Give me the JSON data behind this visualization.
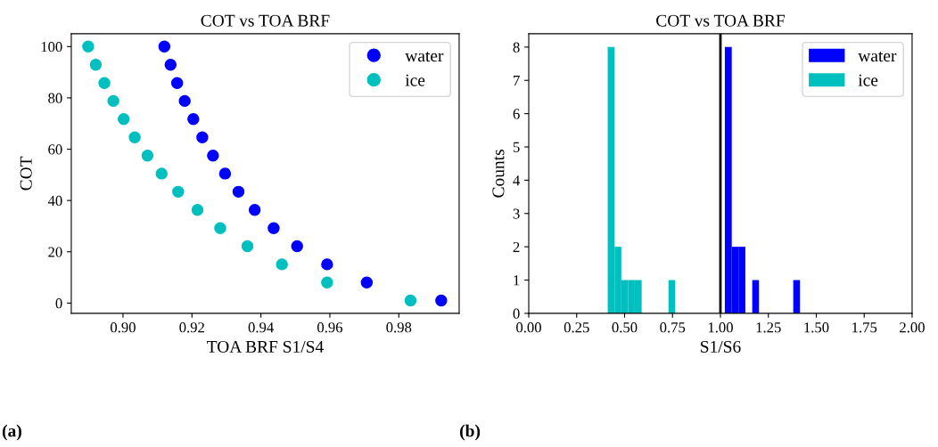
{
  "chart_data": [
    {
      "type": "scatter",
      "title": "COT vs TOA BRF",
      "xlabel": "TOA BRF S1/S4",
      "ylabel": "COT",
      "marker": "circle",
      "legend": "top right",
      "grid": false,
      "xlim": [
        0.885,
        0.9975
      ],
      "ylim": [
        -4.0,
        105.0
      ],
      "xticks": [
        {
          "value": 0.9,
          "label": "0.90"
        },
        {
          "value": 0.92,
          "label": "0.92"
        },
        {
          "value": 0.94,
          "label": "0.94"
        },
        {
          "value": 0.96,
          "label": "0.96"
        },
        {
          "value": 0.98,
          "label": "0.98"
        }
      ],
      "yticks": [
        0,
        20,
        40,
        60,
        80,
        100
      ],
      "series": [
        {
          "name": "water",
          "color": "#0000ff",
          "x": [
            0.912,
            0.9138,
            0.9157,
            0.9179,
            0.9204,
            0.923,
            0.9261,
            0.9296,
            0.9335,
            0.9382,
            0.9437,
            0.9505,
            0.9592,
            0.9707,
            0.9923
          ],
          "values": [
            100,
            92.9,
            85.8,
            78.8,
            71.7,
            64.6,
            57.5,
            50.5,
            43.4,
            36.3,
            29.2,
            22.2,
            15.1,
            8.0,
            1.0
          ]
        },
        {
          "name": "ice",
          "color": "#00bfbf",
          "x": [
            0.8899,
            0.8921,
            0.8946,
            0.8972,
            0.9002,
            0.9034,
            0.9071,
            0.9112,
            0.916,
            0.9216,
            0.9282,
            0.9361,
            0.9461,
            0.9592,
            0.9834
          ],
          "values": [
            100,
            92.9,
            85.8,
            78.8,
            71.7,
            64.6,
            57.5,
            50.5,
            43.4,
            36.3,
            29.2,
            22.2,
            15.1,
            8.0,
            1.0
          ]
        }
      ],
      "annotations": [
        "(a)"
      ]
    },
    {
      "type": "histogram",
      "title": "COT vs TOA BRF",
      "xlabel": "S1/S6",
      "ylabel": "Counts",
      "legend": "top right",
      "grid": false,
      "xlim": [
        0.0,
        2.0
      ],
      "ylim": [
        0,
        8.4
      ],
      "xticks": [
        {
          "value": 0,
          "label": "0.00"
        },
        {
          "value": 0.25,
          "label": "0.25"
        },
        {
          "value": 0.5,
          "label": "0.50"
        },
        {
          "value": 0.75,
          "label": "0.75"
        },
        {
          "value": 1.0,
          "label": "1.00"
        },
        {
          "value": 1.25,
          "label": "1.25"
        },
        {
          "value": 1.5,
          "label": "1.50"
        },
        {
          "value": 1.75,
          "label": "1.75"
        },
        {
          "value": 2.0,
          "label": "2.00"
        }
      ],
      "yticks": [
        0,
        1,
        2,
        3,
        4,
        5,
        6,
        7,
        8
      ],
      "bins": [
        0.412,
        0.448,
        0.483,
        0.518,
        0.553,
        0.589,
        0.729,
        0.764,
        1.023,
        1.059,
        1.094,
        1.13,
        1.166,
        1.201,
        1.38,
        1.415
      ],
      "series": [
        {
          "name": "water",
          "color": "#0000ff",
          "values": [
            0,
            0,
            0,
            0,
            0,
            0,
            0,
            0,
            8,
            2,
            2,
            0,
            1,
            0,
            1
          ]
        },
        {
          "name": "ice",
          "color": "#00bfbf",
          "values": [
            8,
            2,
            1,
            1,
            1,
            0,
            1,
            0,
            0,
            0,
            0,
            0,
            0,
            0,
            0
          ]
        }
      ],
      "ref_lines": [
        {
          "axis": "x",
          "value": 1.0,
          "color": "#000000",
          "line_style": "solid"
        }
      ],
      "annotations": [
        "(b)"
      ]
    }
  ]
}
